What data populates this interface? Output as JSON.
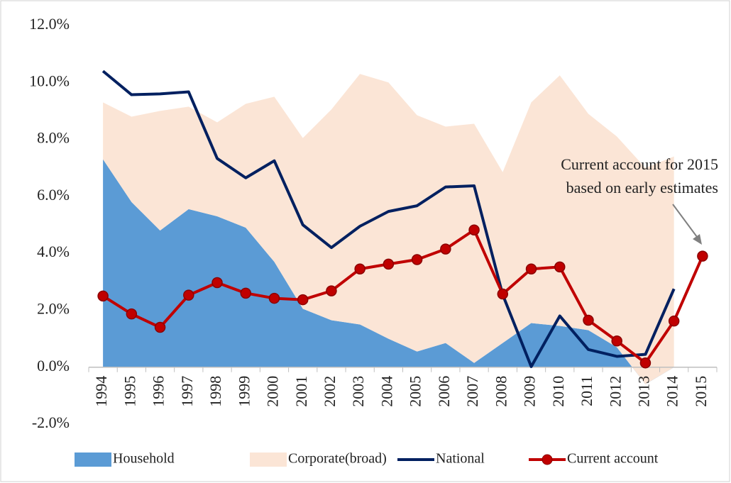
{
  "chart_data": {
    "type": "line",
    "categories": [
      "1994",
      "1995",
      "1996",
      "1997",
      "1998",
      "1999",
      "2000",
      "2001",
      "2002",
      "2003",
      "2004",
      "2005",
      "2006",
      "2007",
      "2008",
      "2009",
      "2010",
      "2011",
      "2012",
      "2013",
      "2014",
      "2015"
    ],
    "series": [
      {
        "name": "Household",
        "type": "area",
        "color": "#5b9bd5",
        "values": [
          7.3,
          5.8,
          4.8,
          5.55,
          5.3,
          4.9,
          3.7,
          2.05,
          1.65,
          1.5,
          1.0,
          0.55,
          0.85,
          0.15,
          0.85,
          1.55,
          1.45,
          1.3,
          0.7,
          -0.6,
          0,
          null
        ]
      },
      {
        "name": "Corporate(broad)",
        "type": "area",
        "color": "#fbe5d6",
        "values": [
          2.0,
          3.0,
          4.2,
          3.6,
          3.3,
          4.35,
          5.8,
          6.0,
          7.4,
          8.8,
          9.0,
          8.3,
          7.6,
          8.4,
          6.0,
          7.75,
          8.8,
          7.6,
          7.4,
          7.6,
          7.4,
          null
        ]
      },
      {
        "name": "National",
        "type": "line",
        "color": "#002060",
        "values": [
          10.4,
          9.57,
          9.6,
          9.67,
          7.33,
          6.65,
          7.25,
          5.0,
          4.2,
          4.95,
          5.47,
          5.67,
          6.33,
          6.37,
          2.55,
          0.02,
          1.8,
          0.62,
          0.38,
          0.45,
          2.75,
          null
        ]
      },
      {
        "name": "Current account",
        "type": "line",
        "markers": true,
        "color": "#c00000",
        "values": [
          2.5,
          1.87,
          1.4,
          2.53,
          2.97,
          2.6,
          2.42,
          2.37,
          2.68,
          3.45,
          3.62,
          3.78,
          4.15,
          4.82,
          2.57,
          3.45,
          3.52,
          1.65,
          0.92,
          0.15,
          1.62,
          3.9
        ]
      }
    ],
    "ylim": [
      -2,
      12
    ],
    "yticks": [
      {
        "value": -2,
        "label": "-2.0%"
      },
      {
        "value": 0,
        "label": "0.0%"
      },
      {
        "value": 2,
        "label": "2.0%"
      },
      {
        "value": 4,
        "label": "4.0%"
      },
      {
        "value": 6,
        "label": "6.0%"
      },
      {
        "value": 8,
        "label": "8.0%"
      },
      {
        "value": 10,
        "label": "10.0%"
      },
      {
        "value": 12,
        "label": "12.0%"
      }
    ],
    "annotation": [
      "Current account for 2015",
      "based on early estimates"
    ],
    "legend": "bottom"
  }
}
